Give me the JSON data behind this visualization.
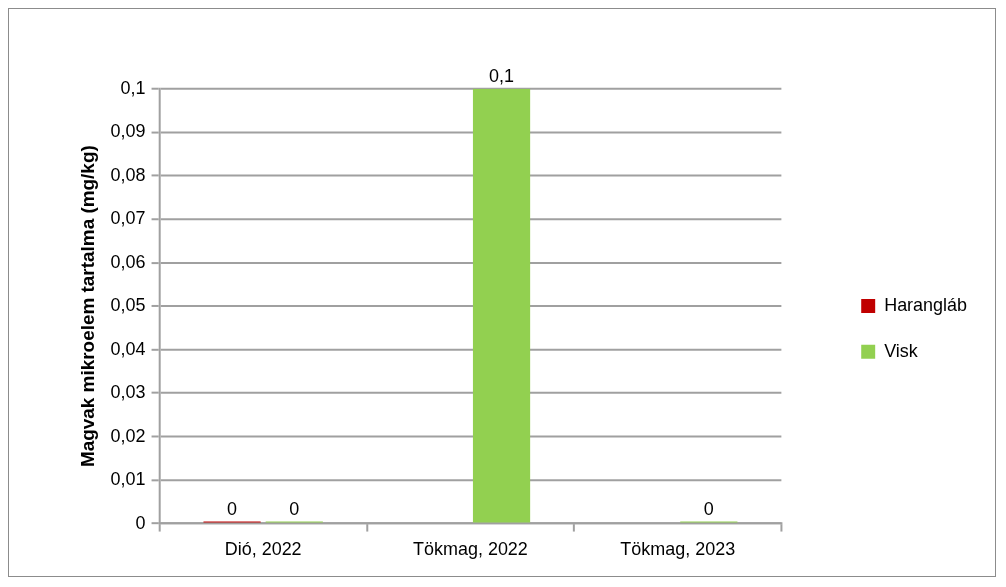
{
  "chart_data": {
    "type": "bar",
    "ylabel": "Magvak mikroelem tartalma (mg/kg)",
    "categories": [
      "Dió, 2022",
      "Tökmag, 2022",
      "Tökmag, 2023"
    ],
    "series": [
      {
        "name": "Harangláb",
        "color": "#c00000",
        "values": [
          0,
          null,
          null
        ],
        "value_labels": [
          "0",
          null,
          null
        ]
      },
      {
        "name": "Visk",
        "color": "#92d050",
        "values": [
          0,
          0.1,
          0
        ],
        "value_labels": [
          "0",
          "0,1",
          "0"
        ]
      }
    ],
    "ylim": [
      0,
      0.1
    ],
    "yticks": [
      0,
      {
        "value": 0.01,
        "label": "0,01"
      },
      {
        "value": 0.02,
        "label": "0,02"
      },
      {
        "value": 0.03,
        "label": "0,03"
      },
      {
        "value": 0.04,
        "label": "0,04"
      },
      {
        "value": 0.05,
        "label": "0,05"
      },
      {
        "value": 0.06,
        "label": "0,06"
      },
      {
        "value": 0.07,
        "label": "0,07"
      },
      {
        "value": 0.08,
        "label": "0,08"
      },
      {
        "value": 0.09,
        "label": "0,09"
      },
      {
        "value": 0.1,
        "label": "0,1"
      }
    ],
    "grid": "y",
    "legend": "right"
  }
}
